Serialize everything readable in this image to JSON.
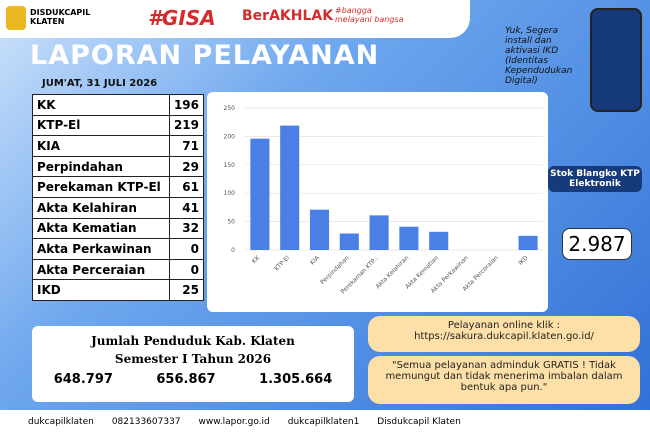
{
  "header": {
    "org": "DISDUKCAPIL KLATEN",
    "tag1": "#GISA",
    "tag2": "BerAKHLAK",
    "tag3": "#bangga melayani bangsa",
    "title": "LAPORAN PELAYANAN",
    "date": "JUM'AT, 31 JULI 2026",
    "promo": "Yuk, Segera install dan aktivasi IKD (Identitas Kependudukan Digital)"
  },
  "table": {
    "rows": [
      [
        "KK",
        "196"
      ],
      [
        "KTP-El",
        "219"
      ],
      [
        "KIA",
        "71"
      ],
      [
        "Perpindahan",
        "29"
      ],
      [
        "Perekaman KTP-El",
        "61"
      ],
      [
        "Akta Kelahiran",
        "41"
      ],
      [
        "Akta Kematian",
        "32"
      ],
      [
        "Akta Perkawinan",
        "0"
      ],
      [
        "Akta Perceraian",
        "0"
      ],
      [
        "IKD",
        "25"
      ]
    ]
  },
  "chart_data": {
    "type": "bar",
    "categories": [
      "KK",
      "KTP-El",
      "KIA",
      "Perpindahan",
      "Perekaman KTP...",
      "Akta Kelahiran",
      "Akta Kematian",
      "Akta Perkawinan",
      "Akta Perceraian",
      "IKD"
    ],
    "values": [
      196,
      219,
      71,
      29,
      61,
      41,
      32,
      0,
      0,
      25
    ],
    "color": "#4a7fe6",
    "ylim": [
      0,
      250
    ],
    "yticks": [
      0,
      50,
      100,
      150,
      200,
      250
    ],
    "grid": true
  },
  "stock": {
    "label": "Stok Blangko KTP Elektronik",
    "value": "2.987"
  },
  "population": {
    "title": "Jumlah Penduduk Kab. Klaten",
    "subtitle": "Semester I Tahun 2026",
    "male": "648.797",
    "female": "656.867",
    "total": "1.305.664"
  },
  "online": {
    "label": "Pelayanan online klik :",
    "url": "https://sakura.dukcapil.klaten.go.id/"
  },
  "notice": "\"Semua pelayanan adminduk GRATIS ! Tidak memungut dan tidak menerima imbalan dalam bentuk apa pun.\"",
  "footer": [
    "dukcapilklaten",
    "082133607337",
    "www.lapor.go.id",
    "dukcapilklaten1",
    "Disdukcapil Klaten"
  ]
}
